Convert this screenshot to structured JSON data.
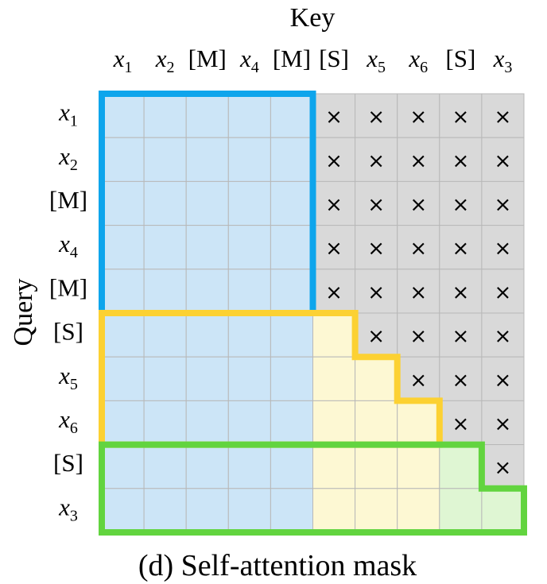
{
  "key_title": "Key",
  "query_title": "Query",
  "caption": "(d)  Self-attention mask",
  "tokens": [
    {
      "base": "x",
      "sub": "1",
      "math": true
    },
    {
      "base": "x",
      "sub": "2",
      "math": true
    },
    {
      "base": "[M]",
      "sub": "",
      "math": false
    },
    {
      "base": "x",
      "sub": "4",
      "math": true
    },
    {
      "base": "[M]",
      "sub": "",
      "math": false
    },
    {
      "base": "[S]",
      "sub": "",
      "math": false
    },
    {
      "base": "x",
      "sub": "5",
      "math": true
    },
    {
      "base": "x",
      "sub": "6",
      "math": true
    },
    {
      "base": "[S]",
      "sub": "",
      "math": false
    },
    {
      "base": "x",
      "sub": "3",
      "math": true
    }
  ],
  "cross_symbol": "×",
  "mask": [
    "BBBBBXXXXX",
    "BBBBBXXXXX",
    "BBBBBXXXXX",
    "BBBBBXXXXX",
    "BBBBBXXXXX",
    "BBBBBYXXXX",
    "BBBBBYYXXX",
    "BBBBBYYYXX",
    "BBBBBYYYGX",
    "BBBBBYYYGG"
  ],
  "colors": {
    "blue_fill": "#cce5f7",
    "yellow_fill": "#fdf8d3",
    "green_fill": "#dff6d3",
    "masked_fill": "#d9d9d9",
    "grid_line": "#b8b8b8",
    "blue_border": "#0ea5ec",
    "yellow_border": "#fcd132",
    "green_border": "#62d43f"
  }
}
